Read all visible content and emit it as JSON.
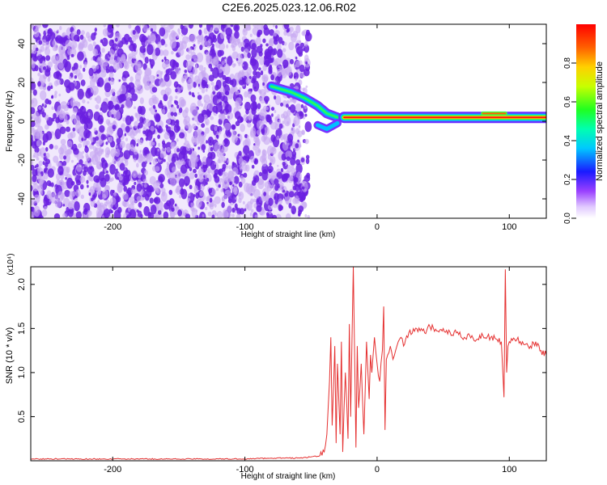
{
  "title": "C2E6.2025.023.12.06.R02",
  "colors": {
    "signal": "#e53030",
    "noise": "#6a1ee0",
    "noise_light": "#c7a6f2",
    "background": "#ffffff",
    "axis": "#000000"
  },
  "chart_data": [
    {
      "type": "heatmap",
      "title": "C2E6.2025.023.12.06.R02",
      "xlabel": "Height of straight line (km)",
      "ylabel": "Frequency (Hz)",
      "xlim": [
        -262,
        128
      ],
      "ylim": [
        -50,
        50
      ],
      "xticks": [
        -200,
        -100,
        0,
        100
      ],
      "yticks": [
        -40,
        -20,
        0,
        20,
        40
      ],
      "grid": false,
      "colorbar": {
        "label": "Normalized spectral amplitude",
        "range": [
          0.0,
          1.0
        ],
        "ticks": [
          "0.0",
          "0.2",
          "0.4",
          "0.6",
          "0.8"
        ],
        "colormap": "rainbow (white-violet-blue-cyan-green-yellow-red)"
      },
      "regions": [
        {
          "name": "noise",
          "x_range": [
            -262,
            -58
          ],
          "freq_range": [
            -50,
            50
          ],
          "amplitude": "0.1-0.3 scattered"
        },
        {
          "name": "signal_track_upper",
          "points": [
            [
              -80,
              18
            ],
            [
              -65,
              15
            ],
            [
              -55,
              12
            ],
            [
              -45,
              8
            ],
            [
              -38,
              4
            ],
            [
              -30,
              2
            ]
          ],
          "amplitude": "0.4-0.8"
        },
        {
          "name": "signal_track_lower",
          "points": [
            [
              -45,
              -2
            ],
            [
              -38,
              -4
            ],
            [
              -30,
              -1
            ]
          ],
          "amplitude": "0.3-0.6"
        },
        {
          "name": "carrier",
          "x_range": [
            -25,
            128
          ],
          "freq": 2,
          "amplitude": "0.9-1.0"
        },
        {
          "name": "carrier_offset",
          "x_range": [
            80,
            97
          ],
          "freq": 4,
          "amplitude": "0.8"
        }
      ]
    },
    {
      "type": "line",
      "xlabel": "Height of straight line (km)",
      "ylabel": "SNR (10 * v/v)",
      "y_multiplier": "(x10⁴)",
      "xlim": [
        -262,
        128
      ],
      "ylim": [
        0,
        2.2
      ],
      "xticks": [
        -200,
        -100,
        0,
        100
      ],
      "yticks": [
        0.5,
        1.0,
        1.5,
        2.0
      ],
      "grid": false,
      "series": [
        {
          "x": [
            -262,
            -240,
            -200,
            -160,
            -120,
            -100,
            -80,
            -60,
            -45,
            -40,
            -38,
            -36,
            -35,
            -34,
            -32,
            -31,
            -30,
            -28,
            -27,
            -26,
            -24,
            -22,
            -21,
            -20,
            -18,
            -16,
            -15,
            -14,
            -12,
            -10,
            -8,
            -6,
            -5,
            -4,
            -2,
            0,
            2,
            4,
            5,
            6,
            7,
            8,
            10,
            12,
            14,
            16,
            18,
            20,
            24,
            30,
            36,
            40,
            46,
            50,
            56,
            60,
            66,
            70,
            76,
            80,
            86,
            90,
            94,
            96,
            97,
            98,
            99,
            100,
            104,
            110,
            116,
            120,
            124,
            128
          ],
          "y": [
            0.02,
            0.02,
            0.02,
            0.02,
            0.02,
            0.02,
            0.03,
            0.03,
            0.05,
            0.1,
            0.3,
            0.9,
            1.4,
            0.4,
            1.3,
            0.2,
            1.1,
            0.3,
            1.35,
            0.1,
            1.0,
            0.25,
            1.55,
            0.5,
            2.2,
            0.15,
            1.3,
            0.6,
            1.1,
            0.3,
            1.35,
            0.7,
            1.2,
            1.0,
            1.4,
            1.1,
            0.9,
            1.25,
            1.75,
            0.35,
            1.15,
            1.2,
            1.3,
            1.15,
            1.25,
            1.35,
            1.4,
            1.3,
            1.45,
            1.5,
            1.45,
            1.52,
            1.47,
            1.5,
            1.42,
            1.45,
            1.4,
            1.42,
            1.38,
            1.42,
            1.4,
            1.38,
            1.35,
            0.72,
            2.17,
            1.0,
            1.3,
            1.35,
            1.38,
            1.35,
            1.3,
            1.35,
            1.25,
            1.2
          ]
        }
      ]
    }
  ]
}
